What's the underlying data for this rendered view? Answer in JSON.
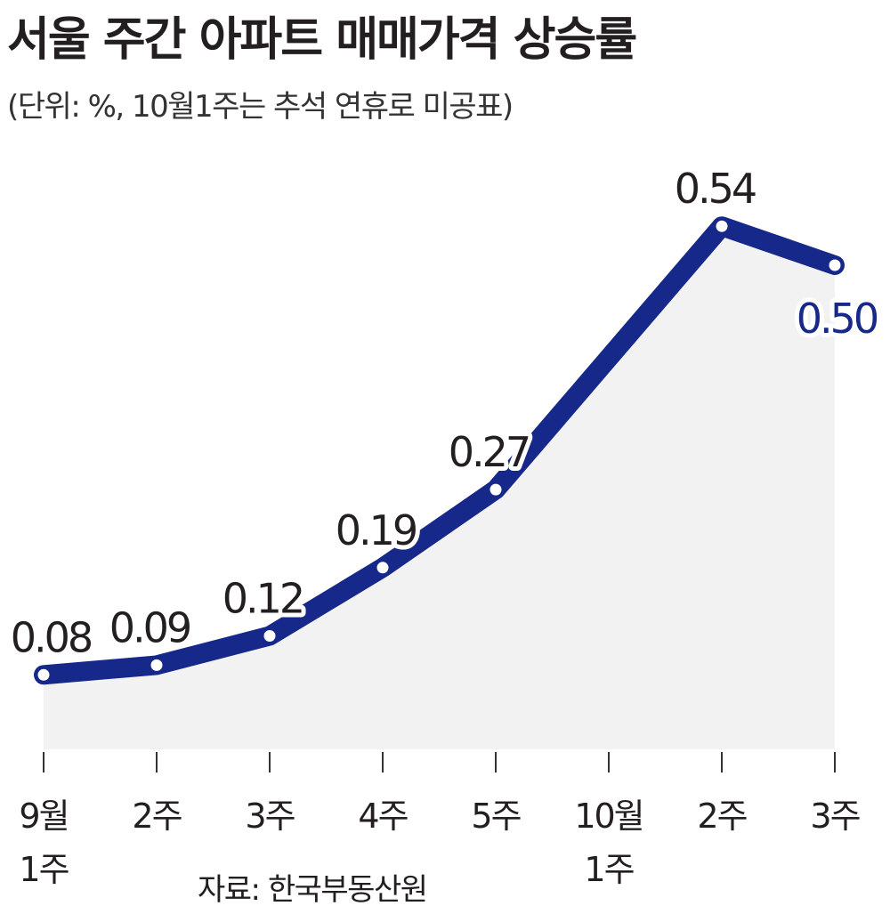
{
  "header": {
    "title": "서울 주간 아파트 매매가격 상승률",
    "subtitle": "(단위: %, 10월1주는 추석 연휴로 미공표)"
  },
  "footer": {
    "source": "자료: 한국부동산원"
  },
  "colors": {
    "line": "#16288a",
    "fill": "#f2f2f3",
    "label": "#231f20",
    "highlight_label": "#16288a",
    "axis_tick": "#333333"
  },
  "chart_data": {
    "type": "line",
    "categories": [
      [
        "9월",
        "1주"
      ],
      [
        "2주"
      ],
      [
        "3주"
      ],
      [
        "4주"
      ],
      [
        "5주"
      ],
      [
        "10월",
        "1주"
      ],
      [
        "2주"
      ],
      [
        "3주"
      ]
    ],
    "series": [
      {
        "values": [
          0.08,
          0.09,
          0.12,
          0.19,
          0.27,
          null,
          0.54,
          0.5
        ],
        "labels": [
          "0.08",
          "0.09",
          "0.12",
          "0.19",
          "0.27",
          null,
          "0.54",
          "0.50"
        ],
        "highlight_last": true
      }
    ],
    "ylim": [
      0,
      0.6
    ],
    "grid": false,
    "area_fill": true
  }
}
